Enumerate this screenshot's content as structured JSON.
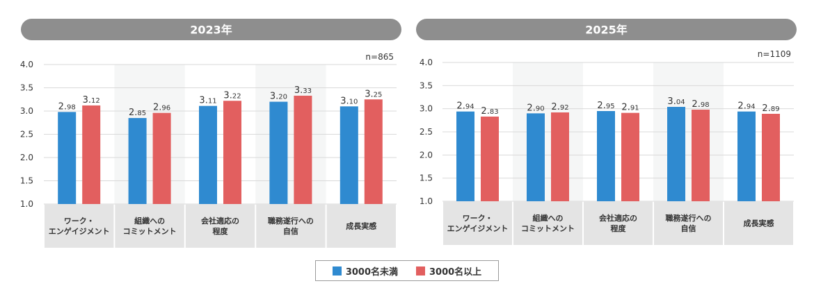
{
  "colors": {
    "series_a": "#2f8ad0",
    "series_b": "#e25f5f",
    "header": "#8e8e8e",
    "category_bg": "#e4e4e4",
    "stripe": "#f5f6f6"
  },
  "legend": {
    "items": [
      "3000名未満",
      "3000名以上"
    ]
  },
  "chart_data": [
    {
      "type": "bar",
      "title": "2023年",
      "note": "n=865",
      "categories": [
        [
          "ワーク・",
          "エンゲイジメント"
        ],
        [
          "組織への",
          "コミットメント"
        ],
        [
          "会社適応の",
          "程度"
        ],
        [
          "職務遂行への",
          "自信"
        ],
        [
          "成長実感"
        ]
      ],
      "series": [
        {
          "name": "3000名未満",
          "values": [
            2.98,
            2.85,
            3.11,
            3.2,
            3.1
          ],
          "labels": [
            "2.98",
            "2.85",
            "3.11",
            "3.20",
            "3.10"
          ]
        },
        {
          "name": "3000名以上",
          "values": [
            3.12,
            2.96,
            3.22,
            3.33,
            3.25
          ],
          "labels": [
            "3.12",
            "2.96",
            "3.22",
            "3.33",
            "3.25"
          ]
        }
      ],
      "ylim": [
        1.0,
        4.0
      ],
      "yticks": [
        "1.0",
        "1.5",
        "2.0",
        "2.5",
        "3.0",
        "3.5",
        "4.0"
      ],
      "grid": true
    },
    {
      "type": "bar",
      "title": "2025年",
      "note": "n=1109",
      "categories": [
        [
          "ワーク・",
          "エンゲイジメント"
        ],
        [
          "組織への",
          "コミットメント"
        ],
        [
          "会社適応の",
          "程度"
        ],
        [
          "職務遂行への",
          "自信"
        ],
        [
          "成長実感"
        ]
      ],
      "series": [
        {
          "name": "3000名未満",
          "values": [
            2.94,
            2.9,
            2.95,
            3.04,
            2.94
          ],
          "labels": [
            "2.94",
            "2.90",
            "2.95",
            "3.04",
            "2.94"
          ]
        },
        {
          "name": "3000名以上",
          "values": [
            2.83,
            2.92,
            2.91,
            2.98,
            2.89
          ],
          "labels": [
            "2.83",
            "2.92",
            "2.91",
            "2.98",
            "2.89"
          ]
        }
      ],
      "ylim": [
        1.0,
        4.0
      ],
      "yticks": [
        "1.0",
        "1.5",
        "2.0",
        "2.5",
        "3.0",
        "3.5",
        "4.0"
      ],
      "grid": true
    }
  ]
}
